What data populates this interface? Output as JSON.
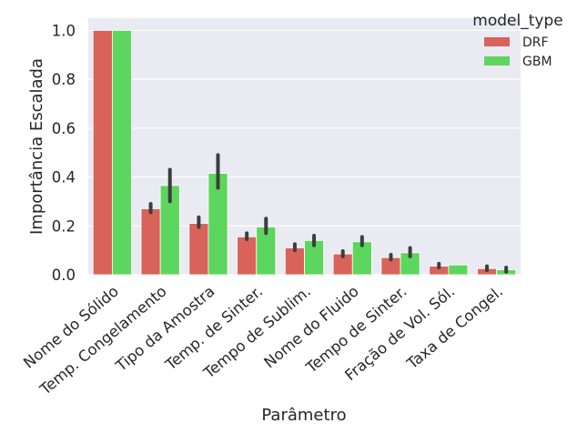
{
  "chart_data": {
    "type": "bar",
    "xlabel": "Parâmetro",
    "ylabel": "Importância Escalada",
    "ylim": [
      0,
      1.05
    ],
    "yticks": [
      "0.0",
      "0.2",
      "0.4",
      "0.6",
      "0.8",
      "1.0"
    ],
    "grid": true,
    "legend": {
      "title": "model_type",
      "placement": "top-right"
    },
    "categories": [
      "Nome do Sólido",
      "Temp. Congelamento",
      "Tipo da Amostra",
      "Temp. de Sinter.",
      "Tempo de Sublim.",
      "Nome do Fluido",
      "Tempo de Sinter.",
      "Fração de Vol. Sól.",
      "Taxa de Congel."
    ],
    "series": [
      {
        "name": "DRF",
        "color": "#d9625b",
        "values": [
          1.0,
          0.27,
          0.21,
          0.155,
          0.11,
          0.085,
          0.07,
          0.035,
          0.025
        ],
        "error_low": [
          1.0,
          0.255,
          0.195,
          0.145,
          0.1,
          0.075,
          0.062,
          0.03,
          0.018
        ],
        "error_high": [
          1.0,
          0.29,
          0.235,
          0.17,
          0.125,
          0.097,
          0.082,
          0.045,
          0.035
        ]
      },
      {
        "name": "GBM",
        "color": "#5dd65d",
        "values": [
          1.0,
          0.365,
          0.415,
          0.195,
          0.14,
          0.135,
          0.09,
          0.04,
          0.02
        ],
        "error_low": [
          1.0,
          0.3,
          0.355,
          0.17,
          0.12,
          0.12,
          0.075,
          0.04,
          0.012
        ],
        "error_high": [
          1.0,
          0.43,
          0.49,
          0.23,
          0.16,
          0.155,
          0.11,
          0.04,
          0.03
        ]
      }
    ]
  }
}
